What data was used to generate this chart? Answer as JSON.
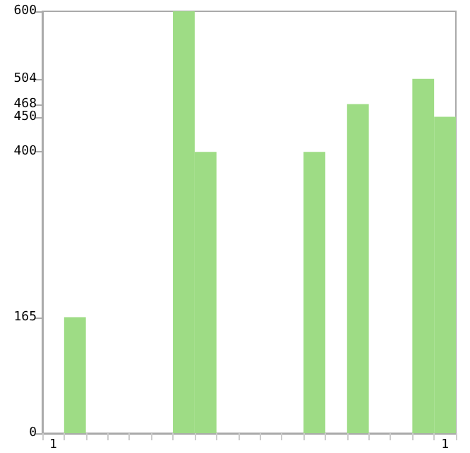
{
  "chart_data": {
    "type": "bar",
    "categories": [
      "1",
      null,
      null,
      null,
      null,
      null,
      null,
      null,
      null,
      null,
      null,
      null,
      null,
      null,
      null,
      null,
      null,
      null,
      "1"
    ],
    "values": [
      0,
      165,
      0,
      0,
      0,
      0,
      600,
      400,
      0,
      0,
      0,
      0,
      400,
      0,
      468,
      0,
      0,
      504,
      450
    ],
    "color": "#9edc85",
    "ylim": [
      0,
      600
    ],
    "yticks": [
      0,
      165,
      400,
      450,
      468,
      504,
      600
    ],
    "grid": false
  }
}
